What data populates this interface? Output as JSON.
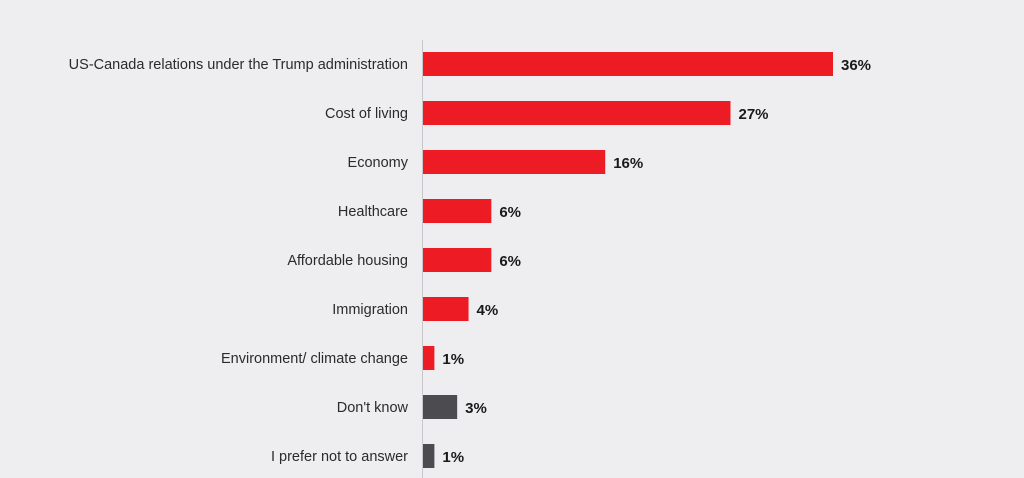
{
  "chart_data": {
    "type": "bar",
    "orientation": "horizontal",
    "categories": [
      "US-Canada relations under the Trump administration",
      "Cost of living",
      "Economy",
      "Healthcare",
      "Affordable housing",
      "Immigration",
      "Environment/ climate change",
      "Don't know",
      "I prefer not to answer"
    ],
    "values": [
      36,
      27,
      16,
      6,
      6,
      4,
      1,
      3,
      1
    ],
    "value_labels": [
      "36%",
      "27%",
      "16%",
      "6%",
      "6%",
      "4%",
      "1%",
      "3%",
      "1%"
    ],
    "colors": [
      "#ed1c24",
      "#ed1c24",
      "#ed1c24",
      "#ed1c24",
      "#ed1c24",
      "#ed1c24",
      "#ed1c24",
      "#4b4b50",
      "#4b4b50"
    ],
    "xlim": [
      0,
      36
    ],
    "grid": false,
    "legend": "none"
  },
  "colors": {
    "background": "#eeeef0",
    "accent": "#ed1c24",
    "neutral": "#4b4b50",
    "axis": "#c8c8cc"
  }
}
